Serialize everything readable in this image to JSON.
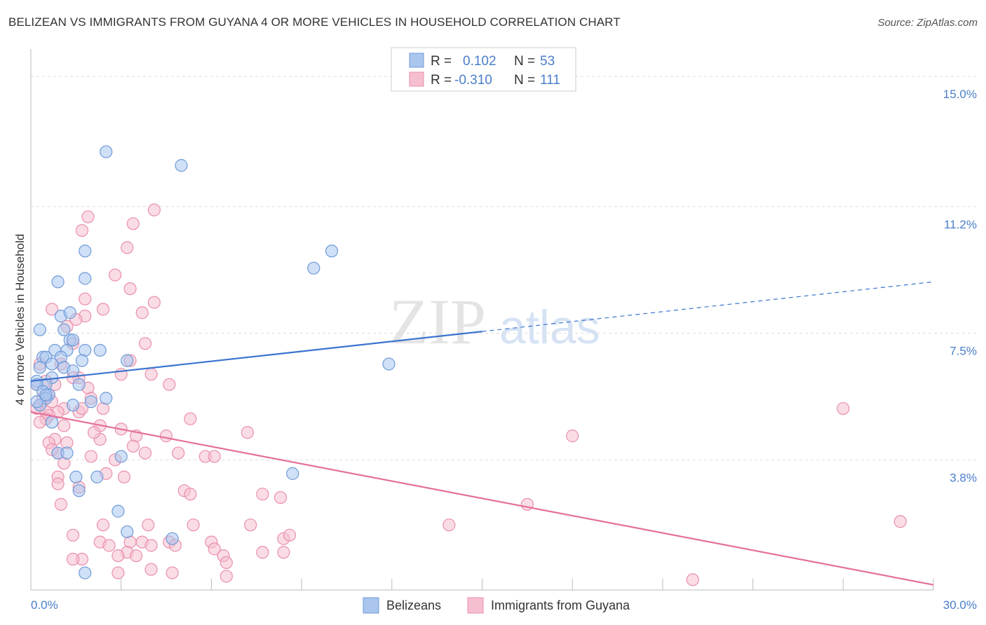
{
  "header": {
    "title": "BELIZEAN VS IMMIGRANTS FROM GUYANA 4 OR MORE VEHICLES IN HOUSEHOLD CORRELATION CHART",
    "source": "Source: ZipAtlas.com"
  },
  "watermark": {
    "zip": "ZIP",
    "atlas": "atlas"
  },
  "colors": {
    "blue_fill": "#aac6ee",
    "blue_stroke": "#6f9bd8",
    "blue_line": "#3a74cf",
    "pink_fill": "#f6bfd0",
    "pink_stroke": "#e98fac",
    "pink_line": "#e4709a",
    "grid": "#dddddd",
    "tick_label": "#4a7ec9"
  },
  "legend": {
    "rows": [
      {
        "r_label": "R =",
        "r_value": "0.102",
        "n_label": "N =",
        "n_value": "53"
      },
      {
        "r_label": "R =",
        "r_value": "-0.310",
        "n_label": "N =",
        "n_value": "111"
      }
    ]
  },
  "chart_data": {
    "type": "scatter",
    "title": "BELIZEAN VS IMMIGRANTS FROM GUYANA 4 OR MORE VEHICLES IN HOUSEHOLD CORRELATION CHART",
    "xlabel": "",
    "ylabel": "4 or more Vehicles in Household",
    "xlim": [
      0,
      30
    ],
    "ylim": [
      0,
      15.8
    ],
    "x_tick_labels": [
      "0.0%",
      "30.0%"
    ],
    "y_ticks": [
      3.8,
      7.5,
      11.2,
      15.0
    ],
    "y_tick_labels": [
      "3.8%",
      "7.5%",
      "11.2%",
      "15.0%"
    ],
    "grid": true,
    "legend_position": "top-center",
    "series": [
      {
        "name": "Belizeans",
        "r": 0.102,
        "n": 53,
        "trend": {
          "x_start": 0,
          "y_start": 6.1,
          "x_solid_end": 15,
          "y_solid_end": 7.55,
          "x_dash_end": 30,
          "y_dash_end": 9.0
        },
        "points": [
          [
            2.5,
            12.8
          ],
          [
            5.0,
            12.4
          ],
          [
            1.8,
            9.9
          ],
          [
            10.0,
            9.9
          ],
          [
            0.9,
            9.0
          ],
          [
            1.8,
            9.1
          ],
          [
            9.4,
            9.4
          ],
          [
            1.0,
            8.0
          ],
          [
            1.3,
            8.1
          ],
          [
            0.3,
            7.6
          ],
          [
            1.1,
            7.6
          ],
          [
            1.3,
            7.3
          ],
          [
            1.4,
            7.3
          ],
          [
            2.3,
            7.0
          ],
          [
            0.8,
            7.0
          ],
          [
            1.2,
            7.0
          ],
          [
            1.8,
            7.0
          ],
          [
            0.4,
            6.8
          ],
          [
            0.5,
            6.8
          ],
          [
            1.0,
            6.8
          ],
          [
            1.7,
            6.7
          ],
          [
            3.2,
            6.7
          ],
          [
            11.9,
            6.6
          ],
          [
            0.3,
            6.5
          ],
          [
            0.7,
            6.6
          ],
          [
            1.1,
            6.5
          ],
          [
            1.4,
            6.4
          ],
          [
            0.7,
            6.2
          ],
          [
            0.2,
            6.1
          ],
          [
            0.5,
            6.0
          ],
          [
            1.6,
            6.0
          ],
          [
            0.2,
            6.0
          ],
          [
            0.4,
            5.8
          ],
          [
            0.6,
            5.7
          ],
          [
            0.5,
            5.6
          ],
          [
            2.5,
            5.6
          ],
          [
            2.0,
            5.5
          ],
          [
            1.4,
            5.4
          ],
          [
            0.3,
            5.4
          ],
          [
            0.7,
            4.9
          ],
          [
            0.9,
            4.0
          ],
          [
            1.2,
            4.0
          ],
          [
            3.0,
            3.9
          ],
          [
            8.7,
            3.4
          ],
          [
            1.5,
            3.3
          ],
          [
            2.2,
            3.3
          ],
          [
            1.6,
            2.9
          ],
          [
            2.9,
            2.3
          ],
          [
            3.2,
            1.7
          ],
          [
            4.7,
            1.5
          ],
          [
            1.8,
            0.5
          ],
          [
            0.2,
            5.5
          ],
          [
            0.5,
            5.7
          ]
        ]
      },
      {
        "name": "Immigrants from Guyana",
        "r": -0.31,
        "n": 111,
        "trend": {
          "x_start": 0,
          "y_start": 5.2,
          "x_end": 30,
          "y_end": 0.15
        },
        "points": [
          [
            4.1,
            11.1
          ],
          [
            1.9,
            10.9
          ],
          [
            3.4,
            10.7
          ],
          [
            1.7,
            10.5
          ],
          [
            3.2,
            10.0
          ],
          [
            2.8,
            9.2
          ],
          [
            3.3,
            8.8
          ],
          [
            1.8,
            8.5
          ],
          [
            4.1,
            8.4
          ],
          [
            2.4,
            8.2
          ],
          [
            0.7,
            8.2
          ],
          [
            3.7,
            8.1
          ],
          [
            1.8,
            8.0
          ],
          [
            1.5,
            7.9
          ],
          [
            1.2,
            7.7
          ],
          [
            3.8,
            7.2
          ],
          [
            1.4,
            7.2
          ],
          [
            3.3,
            6.7
          ],
          [
            0.3,
            6.6
          ],
          [
            1.0,
            6.6
          ],
          [
            4.0,
            6.3
          ],
          [
            3.0,
            6.3
          ],
          [
            1.6,
            6.2
          ],
          [
            1.4,
            6.2
          ],
          [
            0.5,
            6.1
          ],
          [
            0.8,
            6.0
          ],
          [
            4.6,
            6.0
          ],
          [
            0.2,
            6.0
          ],
          [
            1.9,
            5.9
          ],
          [
            0.6,
            5.7
          ],
          [
            0.4,
            5.6
          ],
          [
            0.7,
            5.5
          ],
          [
            0.3,
            5.4
          ],
          [
            0.2,
            5.3
          ],
          [
            0.5,
            5.2
          ],
          [
            2.0,
            5.6
          ],
          [
            1.1,
            5.3
          ],
          [
            1.6,
            5.2
          ],
          [
            2.4,
            5.3
          ],
          [
            1.7,
            5.3
          ],
          [
            0.9,
            5.2
          ],
          [
            0.6,
            5.1
          ],
          [
            0.5,
            5.0
          ],
          [
            5.3,
            5.0
          ],
          [
            2.3,
            4.8
          ],
          [
            1.1,
            4.8
          ],
          [
            3.0,
            4.7
          ],
          [
            0.8,
            4.4
          ],
          [
            0.6,
            4.3
          ],
          [
            1.2,
            4.3
          ],
          [
            3.5,
            4.5
          ],
          [
            2.3,
            4.4
          ],
          [
            4.5,
            4.5
          ],
          [
            7.2,
            4.6
          ],
          [
            18.0,
            4.5
          ],
          [
            0.9,
            4.0
          ],
          [
            2.0,
            3.9
          ],
          [
            3.4,
            4.2
          ],
          [
            2.8,
            3.8
          ],
          [
            4.9,
            4.0
          ],
          [
            5.8,
            3.9
          ],
          [
            6.1,
            3.9
          ],
          [
            1.1,
            3.7
          ],
          [
            0.9,
            3.3
          ],
          [
            3.1,
            3.3
          ],
          [
            1.6,
            3.0
          ],
          [
            5.1,
            2.9
          ],
          [
            5.3,
            2.8
          ],
          [
            7.7,
            2.8
          ],
          [
            8.3,
            2.7
          ],
          [
            1.0,
            2.5
          ],
          [
            16.5,
            2.5
          ],
          [
            28.9,
            2.0
          ],
          [
            5.4,
            1.9
          ],
          [
            2.4,
            1.9
          ],
          [
            3.9,
            1.9
          ],
          [
            7.3,
            1.9
          ],
          [
            13.9,
            1.9
          ],
          [
            1.4,
            1.6
          ],
          [
            8.4,
            1.5
          ],
          [
            8.6,
            1.6
          ],
          [
            2.3,
            1.4
          ],
          [
            3.3,
            1.4
          ],
          [
            3.7,
            1.4
          ],
          [
            4.6,
            1.4
          ],
          [
            6.0,
            1.4
          ],
          [
            2.6,
            1.3
          ],
          [
            4.0,
            1.3
          ],
          [
            4.8,
            1.3
          ],
          [
            6.1,
            1.2
          ],
          [
            3.2,
            1.1
          ],
          [
            7.7,
            1.1
          ],
          [
            8.4,
            1.1
          ],
          [
            2.9,
            1.0
          ],
          [
            3.5,
            1.0
          ],
          [
            6.4,
            1.0
          ],
          [
            1.7,
            0.9
          ],
          [
            6.5,
            0.8
          ],
          [
            2.9,
            0.5
          ],
          [
            4.0,
            0.6
          ],
          [
            4.7,
            0.5
          ],
          [
            6.5,
            0.4
          ],
          [
            22.0,
            0.3
          ],
          [
            1.4,
            0.9
          ],
          [
            0.9,
            3.1
          ],
          [
            2.5,
            3.4
          ],
          [
            0.7,
            4.1
          ],
          [
            27.0,
            5.3
          ],
          [
            0.3,
            4.9
          ],
          [
            2.1,
            4.6
          ],
          [
            3.8,
            4.0
          ]
        ]
      }
    ]
  },
  "bottom_legend": {
    "items": [
      {
        "label": "Belizeans"
      },
      {
        "label": "Immigrants from Guyana"
      }
    ]
  }
}
